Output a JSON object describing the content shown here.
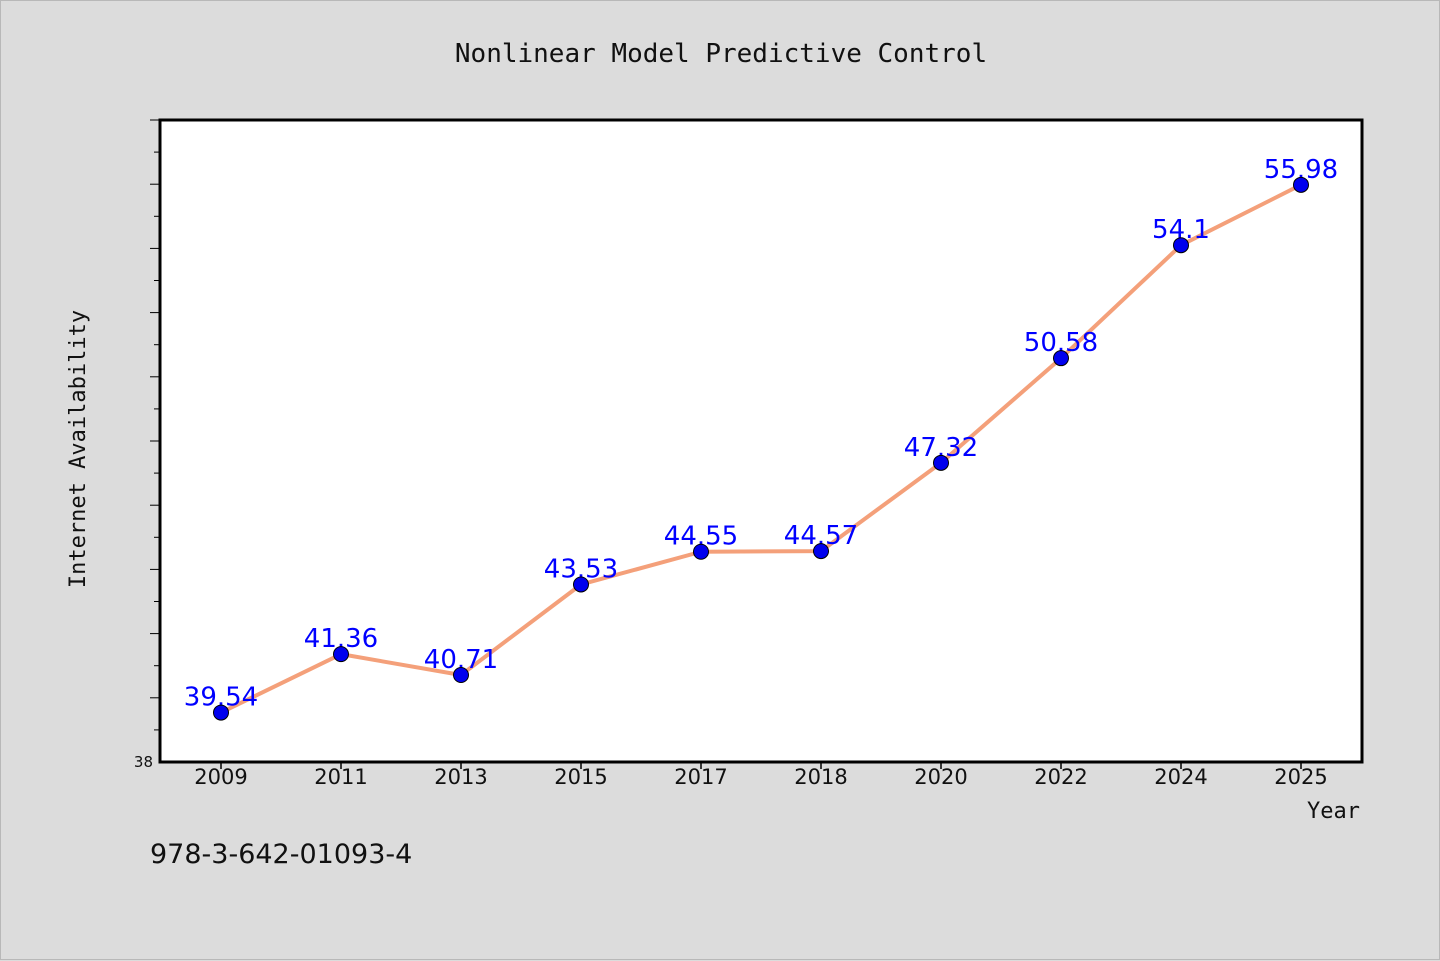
{
  "chart_data": {
    "type": "line",
    "title": "Nonlinear Model Predictive Control",
    "xlabel": "Year",
    "ylabel": "Internet Availability",
    "categories": [
      "2009",
      "2011",
      "2013",
      "2015",
      "2017",
      "2018",
      "2020",
      "2022",
      "2024",
      "2025"
    ],
    "series": [
      {
        "values": [
          39.54,
          41.36,
          40.71,
          43.53,
          44.55,
          44.57,
          47.32,
          50.58,
          54.1,
          55.98
        ],
        "labels": [
          "39.54",
          "41.36",
          "40.71",
          "43.53",
          "44.55",
          "44.57",
          "47.32",
          "50.58",
          "54.1",
          "55.98"
        ],
        "line_color": "#f4a07a",
        "marker_color": "#0000ee",
        "label_color": "#0000ff"
      }
    ],
    "ylim": [
      38,
      58
    ],
    "ytick_min_label": "38",
    "grid": false,
    "legend": false,
    "background": "#dcdcdc",
    "plot_background": "#ffffff"
  },
  "footer": {
    "isbn": "978-3-642-01093-4"
  }
}
